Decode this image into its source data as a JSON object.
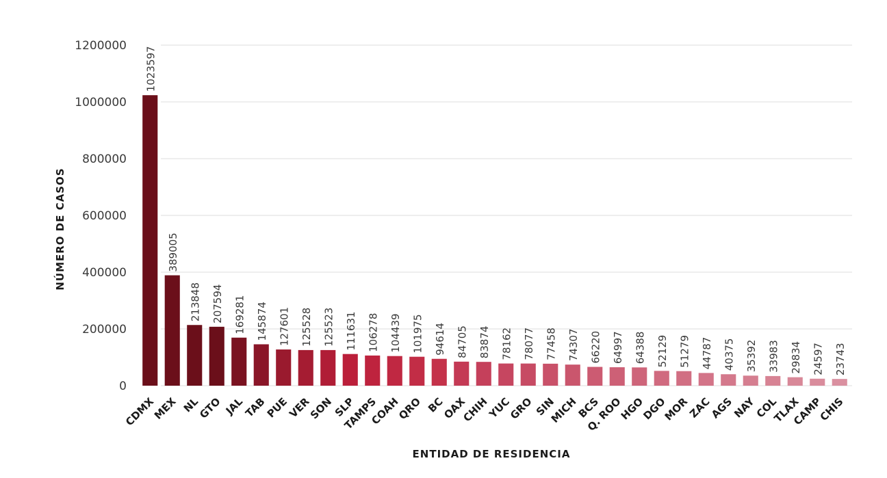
{
  "chart_data": {
    "type": "bar",
    "title": "",
    "xlabel": "ENTIDAD DE RESIDENCIA",
    "ylabel": "NÚMERO DE CASOS",
    "ylim": [
      0,
      1200000
    ],
    "yticks": [
      0,
      200000,
      400000,
      600000,
      800000,
      1000000,
      1200000
    ],
    "grid": "horizontal",
    "legend": "none",
    "categories": [
      "CDMX",
      "MEX",
      "NL",
      "GTO",
      "JAL",
      "TAB",
      "PUE",
      "VER",
      "SON",
      "SLP",
      "TAMPS",
      "COAH",
      "QRO",
      "BC",
      "OAX",
      "CHIH",
      "YUC",
      "GRO",
      "SIN",
      "MICH",
      "BCS",
      "Q. ROO",
      "HGO",
      "DGO",
      "MOR",
      "ZAC",
      "AGS",
      "NAY",
      "COL",
      "TLAX",
      "CAMP",
      "CHIS"
    ],
    "values": [
      1023597,
      389005,
      213848,
      207594,
      169281,
      145874,
      127601,
      125528,
      125523,
      111631,
      106278,
      104439,
      101975,
      94614,
      84705,
      83874,
      78162,
      78077,
      77458,
      74307,
      66220,
      64997,
      64388,
      52129,
      51279,
      44787,
      40375,
      35392,
      33983,
      29834,
      24597,
      23743
    ],
    "colors": [
      "#6b0f1a",
      "#6b0f1a",
      "#6b0f1a",
      "#6b0f1a",
      "#7a1220",
      "#8a1628",
      "#9a1a2e",
      "#a51c32",
      "#b01d36",
      "#bb1f3a",
      "#be233e",
      "#c02842",
      "#c22d46",
      "#c4324a",
      "#c43a55",
      "#c5405b",
      "#c64660",
      "#c74b64",
      "#c95169",
      "#ca566d",
      "#cc5b72",
      "#cd6076",
      "#ce657a",
      "#d06a7f",
      "#d16f83",
      "#d37488",
      "#d4798c",
      "#d57e90",
      "#d78394",
      "#d88898",
      "#d98c9c",
      "#da90a0"
    ]
  }
}
